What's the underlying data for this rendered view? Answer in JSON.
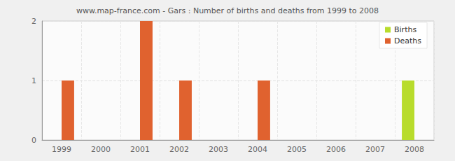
{
  "chart_data": {
    "type": "bar",
    "title": "www.map-france.com - Gars : Number of births and deaths from 1999 to 2008",
    "categories": [
      "1999",
      "2000",
      "2001",
      "2002",
      "2003",
      "2004",
      "2005",
      "2006",
      "2007",
      "2008"
    ],
    "series": [
      {
        "name": "Births",
        "color": "#b8dc2c",
        "values": [
          0,
          0,
          0,
          0,
          0,
          0,
          0,
          0,
          0,
          1
        ]
      },
      {
        "name": "Deaths",
        "color": "#e0622f",
        "values": [
          1,
          0,
          2,
          1,
          0,
          1,
          0,
          0,
          0,
          0
        ]
      }
    ],
    "ylim": [
      0,
      2
    ],
    "yticks": [
      0,
      1,
      2
    ],
    "grid": true,
    "legend": "upper right"
  }
}
